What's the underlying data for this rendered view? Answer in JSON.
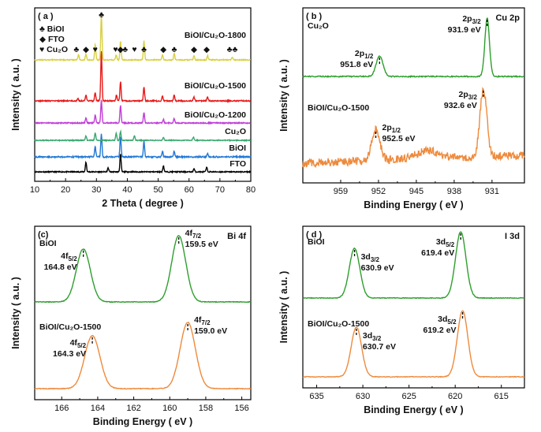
{
  "chart_data": [
    {
      "type": "line",
      "panel": "a",
      "panel_label": "( a )",
      "xlabel": "2 Theta ( degree )",
      "ylabel": "Intensity ( a.u. )",
      "xlim": [
        10,
        80
      ],
      "xticks": [
        10,
        20,
        30,
        40,
        50,
        60,
        70,
        80
      ],
      "legend": [
        {
          "symbol": "♣",
          "label": "BiOI"
        },
        {
          "symbol": "◆",
          "label": "FTO"
        },
        {
          "symbol": "♥",
          "label": "Cu₂O"
        }
      ],
      "series": [
        {
          "name": "FTO",
          "color": "#000000",
          "peaks": [
            [
              26.6,
              0.55
            ],
            [
              33.8,
              0.22
            ],
            [
              37.8,
              1.0
            ],
            [
              51.7,
              0.35
            ],
            [
              61.6,
              0.18
            ],
            [
              65.7,
              0.25
            ]
          ]
        },
        {
          "name": "BiOI",
          "color": "#1f77d4",
          "peaks": [
            [
              29.6,
              0.45
            ],
            [
              31.6,
              1.0
            ],
            [
              37.8,
              0.9
            ],
            [
              45.4,
              0.7
            ],
            [
              51.4,
              0.25
            ],
            [
              55.2,
              0.25
            ],
            [
              66.0,
              0.15
            ]
          ]
        },
        {
          "name": "Cu₂O",
          "color": "#3aa870",
          "peaks": [
            [
              26.6,
              0.3
            ],
            [
              29.6,
              0.5
            ],
            [
              36.4,
              0.45
            ],
            [
              37.8,
              0.6
            ],
            [
              42.3,
              0.3
            ],
            [
              51.7,
              0.2
            ],
            [
              61.4,
              0.2
            ]
          ]
        },
        {
          "name": "BiOI/Cu₂O-1200",
          "color": "#c03cd8",
          "peaks": [
            [
              26.6,
              0.3
            ],
            [
              29.6,
              0.45
            ],
            [
              31.6,
              1.3
            ],
            [
              37.8,
              1.0
            ],
            [
              45.4,
              0.6
            ],
            [
              51.7,
              0.2
            ],
            [
              55.2,
              0.25
            ]
          ]
        },
        {
          "name": "BiOI/Cu₂O-1500",
          "color": "#e81818",
          "peaks": [
            [
              24.0,
              0.12
            ],
            [
              26.6,
              0.3
            ],
            [
              29.6,
              0.45
            ],
            [
              31.6,
              2.6
            ],
            [
              36.5,
              0.3
            ],
            [
              37.8,
              1.0
            ],
            [
              45.4,
              0.75
            ],
            [
              51.4,
              0.25
            ],
            [
              55.2,
              0.3
            ],
            [
              61.6,
              0.2
            ],
            [
              66.0,
              0.2
            ]
          ]
        },
        {
          "name": "BiOI/Cu₂O-1800",
          "color": "#d8d040",
          "peaks": [
            [
              24.2,
              0.3
            ],
            [
              26.6,
              0.35
            ],
            [
              29.6,
              0.9
            ],
            [
              31.6,
              2.6
            ],
            [
              36.4,
              0.3
            ],
            [
              37.8,
              1.1
            ],
            [
              45.4,
              1.1
            ],
            [
              51.4,
              0.3
            ],
            [
              55.2,
              0.35
            ],
            [
              61.6,
              0.25
            ],
            [
              66.0,
              0.25
            ],
            [
              74.0,
              0.15
            ]
          ]
        }
      ],
      "markers": [
        {
          "x": 23.5,
          "symbol": "♣"
        },
        {
          "x": 26.6,
          "symbol": "◆"
        },
        {
          "x": 29.6,
          "symbol": "♥"
        },
        {
          "x": 31.6,
          "symbol": "♣"
        },
        {
          "x": 36.2,
          "symbol": "♥"
        },
        {
          "x": 37.8,
          "symbol": "◆"
        },
        {
          "x": 39.3,
          "symbol": "♣"
        },
        {
          "x": 42.3,
          "symbol": "♥"
        },
        {
          "x": 45.4,
          "symbol": "♣"
        },
        {
          "x": 51.7,
          "symbol": "◆"
        },
        {
          "x": 55.2,
          "symbol": "♣"
        },
        {
          "x": 61.6,
          "symbol": "◆"
        },
        {
          "x": 65.7,
          "symbol": "◆"
        },
        {
          "x": 74.0,
          "symbol": "♣♣"
        }
      ]
    },
    {
      "type": "line",
      "panel": "b",
      "panel_label": "( b )",
      "corner_label": "Cu 2p",
      "xlabel": "Binding Energy ( eV )",
      "ylabel": "Intensity ( a.u. )",
      "xlim": [
        966,
        925
      ],
      "xticks": [
        959,
        952,
        945,
        938,
        931
      ],
      "series": [
        {
          "name": "Cu₂O",
          "color": "#2e9e2e",
          "peaks": [
            {
              "x": 951.8,
              "h": 0.35,
              "w": 0.9
            },
            {
              "x": 931.9,
              "h": 1.0,
              "w": 0.6
            }
          ]
        },
        {
          "name": "BiOI/Cu₂O-1500",
          "color": "#ee8a3c",
          "peaks": [
            {
              "x": 952.5,
              "h": 0.45,
              "w": 1.1
            },
            {
              "x": 932.6,
              "h": 1.0,
              "w": 0.9
            },
            {
              "x": 943.0,
              "h": 0.12,
              "w": 3.0
            }
          ]
        }
      ],
      "annotations": [
        {
          "series": "Cu₂O",
          "orbital": "2p",
          "sub": "1/2",
          "value": "951.8 eV",
          "x": 951.8
        },
        {
          "series": "Cu₂O",
          "orbital": "2p",
          "sub": "3/2",
          "value": "931.9 eV",
          "x": 931.9
        },
        {
          "series": "BiOI/Cu₂O-1500",
          "orbital": "2p",
          "sub": "1/2",
          "value": "952.5 eV",
          "x": 952.5
        },
        {
          "series": "BiOI/Cu₂O-1500",
          "orbital": "2p",
          "sub": "3/2",
          "value": "932.6 eV",
          "x": 932.6
        }
      ]
    },
    {
      "type": "line",
      "panel": "c",
      "panel_label": "(c)",
      "corner_label": "Bi 4f",
      "xlabel": "Binding Energy ( eV )",
      "ylabel": "Intensity ( a.u. )",
      "xlim": [
        167.5,
        155.5
      ],
      "xticks": [
        166,
        164,
        162,
        160,
        158,
        156
      ],
      "series": [
        {
          "name": "BiOI",
          "color": "#2e9e2e",
          "peaks": [
            {
              "x": 164.8,
              "h": 0.8,
              "w": 0.55
            },
            {
              "x": 159.5,
              "h": 1.0,
              "w": 0.55
            }
          ]
        },
        {
          "name": "BiOI/Cu₂O-1500",
          "color": "#ee8a3c",
          "peaks": [
            {
              "x": 164.3,
              "h": 0.8,
              "w": 0.6
            },
            {
              "x": 159.0,
              "h": 1.0,
              "w": 0.6
            }
          ]
        }
      ],
      "annotations": [
        {
          "series": "BiOI",
          "orbital": "4f",
          "sub": "5/2",
          "value": "164.8 eV",
          "x": 164.8
        },
        {
          "series": "BiOI",
          "orbital": "4f",
          "sub": "7/2",
          "value": "159.5 eV",
          "x": 159.5
        },
        {
          "series": "BiOI/Cu₂O-1500",
          "orbital": "4f",
          "sub": "5/2",
          "value": "164.3 eV",
          "x": 164.3
        },
        {
          "series": "BiOI/Cu₂O-1500",
          "orbital": "4f",
          "sub": "7/2",
          "value": "159.0 eV",
          "x": 159.0
        }
      ]
    },
    {
      "type": "line",
      "panel": "d",
      "panel_label": "( d )",
      "corner_label": "I 3d",
      "xlabel": "Binding Energy ( eV )",
      "ylabel": "Intensity ( a.u. )",
      "xlim": [
        636.5,
        612.5
      ],
      "xticks": [
        635,
        630,
        625,
        620,
        615
      ],
      "series": [
        {
          "name": "BiOI",
          "color": "#2e9e2e",
          "peaks": [
            {
              "x": 630.9,
              "h": 0.75,
              "w": 0.8
            },
            {
              "x": 619.4,
              "h": 1.0,
              "w": 0.8
            }
          ]
        },
        {
          "name": "BiOI/Cu₂O-1500",
          "color": "#ee8a3c",
          "peaks": [
            {
              "x": 630.7,
              "h": 0.75,
              "w": 0.8
            },
            {
              "x": 619.2,
              "h": 1.0,
              "w": 0.8
            }
          ]
        }
      ],
      "annotations": [
        {
          "series": "BiOI",
          "orbital": "3d",
          "sub": "3/2",
          "value": "630.9 eV",
          "x": 630.9
        },
        {
          "series": "BiOI",
          "orbital": "3d",
          "sub": "5/2",
          "value": "619.4 eV",
          "x": 619.4
        },
        {
          "series": "BiOI/Cu₂O-1500",
          "orbital": "3d",
          "sub": "3/2",
          "value": "630.7 eV",
          "x": 630.7
        },
        {
          "series": "BiOI/Cu₂O-1500",
          "orbital": "3d",
          "sub": "5/2",
          "value": "619.2 eV",
          "x": 619.2
        }
      ]
    }
  ]
}
